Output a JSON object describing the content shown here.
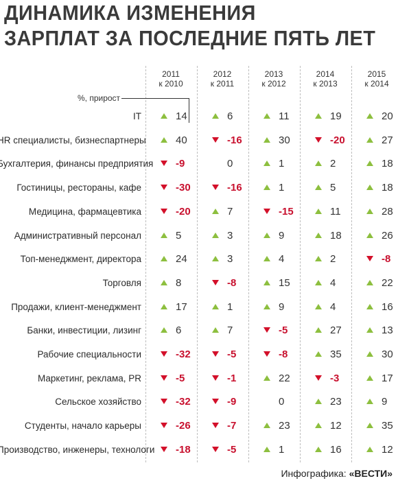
{
  "title": {
    "line1": "ДИНАМИКА ИЗМЕНЕНИЯ",
    "line2": "ЗАРПЛАТ ЗА ПОСЛЕДНИЕ ПЯТЬ ЛЕТ"
  },
  "unit_label": "%, прирост",
  "credit": {
    "prefix": "Инфографика:",
    "brand": "«ВЕСТИ»"
  },
  "colors": {
    "up": "#8dbf3f",
    "down": "#d3102a"
  },
  "chart_data": {
    "type": "table",
    "columns": [
      {
        "year": "2011",
        "vs": "к 2010"
      },
      {
        "year": "2012",
        "vs": "к 2011"
      },
      {
        "year": "2013",
        "vs": "к 2012"
      },
      {
        "year": "2014",
        "vs": "к 2013"
      },
      {
        "year": "2015",
        "vs": "к 2014"
      }
    ],
    "rows": [
      {
        "label": "IT",
        "values": [
          14,
          6,
          11,
          19,
          20
        ]
      },
      {
        "label": "HR специалисты, бизнеспартнеры",
        "values": [
          40,
          -16,
          30,
          -20,
          27
        ]
      },
      {
        "label": "Бухгалтерия, финансы предприятия",
        "values": [
          -9,
          0,
          1,
          2,
          18
        ]
      },
      {
        "label": "Гостиницы, рестораны, кафе",
        "values": [
          -30,
          -16,
          1,
          5,
          18
        ]
      },
      {
        "label": "Медицина, фармацевтика",
        "values": [
          -20,
          7,
          -15,
          11,
          28
        ]
      },
      {
        "label": "Административный персонал",
        "values": [
          5,
          3,
          9,
          18,
          26
        ]
      },
      {
        "label": "Топ-менеджмент, директора",
        "values": [
          24,
          3,
          4,
          2,
          -8
        ]
      },
      {
        "label": "Торговля",
        "values": [
          8,
          -8,
          15,
          4,
          22
        ]
      },
      {
        "label": "Продажи, клиент-менеджмент",
        "values": [
          17,
          1,
          9,
          4,
          16
        ]
      },
      {
        "label": "Банки, инвестиции, лизинг",
        "values": [
          6,
          7,
          -5,
          27,
          13
        ]
      },
      {
        "label": "Рабочие специальности",
        "values": [
          -32,
          -5,
          -8,
          35,
          30
        ]
      },
      {
        "label": "Маркетинг, реклама, PR",
        "values": [
          -5,
          -1,
          22,
          -3,
          17
        ]
      },
      {
        "label": "Сельское хозяйство",
        "values": [
          -32,
          -9,
          0,
          23,
          9
        ]
      },
      {
        "label": "Студенты, начало карьеры",
        "values": [
          -26,
          -7,
          23,
          12,
          35
        ]
      },
      {
        "label": "Производство, инженеры, технологи",
        "values": [
          -18,
          -5,
          1,
          16,
          12
        ]
      }
    ]
  }
}
